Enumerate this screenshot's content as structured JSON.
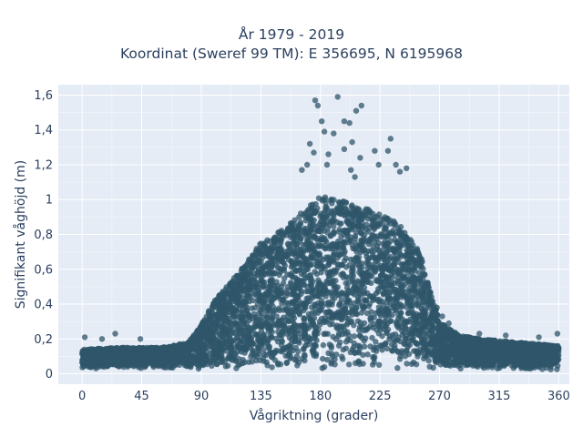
{
  "chart_data": {
    "type": "scatter",
    "title_lines": [
      "År 1979 - 2019",
      "Koordinat (Sweref 99 TM): E 356695, N 6195968"
    ],
    "xlabel": "Vågriktning (grader)",
    "ylabel": "Signifikant våghöjd (m)",
    "xlim": [
      -18,
      368
    ],
    "ylim": [
      -0.06,
      1.66
    ],
    "x_ticks": [
      0,
      45,
      90,
      135,
      180,
      225,
      270,
      315,
      360
    ],
    "x_tick_labels": [
      "0",
      "45",
      "90",
      "135",
      "180",
      "225",
      "270",
      "315",
      "360"
    ],
    "y_ticks": [
      0,
      0.2,
      0.4,
      0.6,
      0.8,
      1.0,
      1.2,
      1.4,
      1.6
    ],
    "y_tick_labels": [
      "0",
      "0,2",
      "0,4",
      "0,6",
      "0,8",
      "1",
      "1,2",
      "1,4",
      "1,6"
    ],
    "grid": true,
    "legend": "none",
    "colors": {
      "marker": "#2f5569",
      "plot_background": "#e5ecf6",
      "grid": "#ffffff",
      "text": "#2a3f5f"
    },
    "envelope": {
      "description_points": "upper envelope of dense point cloud (direction, height)",
      "x": [
        0,
        30,
        60,
        80,
        90,
        100,
        120,
        135,
        150,
        165,
        180,
        195,
        210,
        225,
        240,
        255,
        262,
        270,
        285,
        300,
        330,
        360
      ],
      "y": [
        0.14,
        0.15,
        0.15,
        0.18,
        0.28,
        0.42,
        0.6,
        0.75,
        0.82,
        0.92,
        1.02,
        1.0,
        0.96,
        0.92,
        0.86,
        0.7,
        0.5,
        0.3,
        0.22,
        0.2,
        0.18,
        0.16
      ]
    },
    "outliers": [
      {
        "x": 176,
        "y": 1.57
      },
      {
        "x": 193,
        "y": 1.59
      },
      {
        "x": 207,
        "y": 1.51
      },
      {
        "x": 211,
        "y": 1.54
      },
      {
        "x": 178,
        "y": 1.54
      },
      {
        "x": 181,
        "y": 1.45
      },
      {
        "x": 198,
        "y": 1.45
      },
      {
        "x": 202,
        "y": 1.44
      },
      {
        "x": 183,
        "y": 1.39
      },
      {
        "x": 190,
        "y": 1.38
      },
      {
        "x": 172,
        "y": 1.32
      },
      {
        "x": 204,
        "y": 1.33
      },
      {
        "x": 198,
        "y": 1.29
      },
      {
        "x": 221,
        "y": 1.28
      },
      {
        "x": 231,
        "y": 1.28
      },
      {
        "x": 233,
        "y": 1.35
      },
      {
        "x": 186,
        "y": 1.26
      },
      {
        "x": 185,
        "y": 1.2
      },
      {
        "x": 203,
        "y": 1.17
      },
      {
        "x": 210,
        "y": 1.24
      },
      {
        "x": 224,
        "y": 1.2
      },
      {
        "x": 170,
        "y": 1.2
      },
      {
        "x": 166,
        "y": 1.17
      },
      {
        "x": 237,
        "y": 1.2
      },
      {
        "x": 240,
        "y": 1.16
      },
      {
        "x": 245,
        "y": 1.18
      },
      {
        "x": 175,
        "y": 1.27
      },
      {
        "x": 206,
        "y": 1.13
      },
      {
        "x": 2,
        "y": 0.21
      },
      {
        "x": 15,
        "y": 0.2
      },
      {
        "x": 25,
        "y": 0.23
      },
      {
        "x": 44,
        "y": 0.2
      },
      {
        "x": 300,
        "y": 0.23
      },
      {
        "x": 320,
        "y": 0.22
      },
      {
        "x": 345,
        "y": 0.21
      },
      {
        "x": 359,
        "y": 0.23
      },
      {
        "x": 277,
        "y": 0.29
      },
      {
        "x": 272,
        "y": 0.33
      },
      {
        "x": 268,
        "y": 0.38
      }
    ]
  }
}
